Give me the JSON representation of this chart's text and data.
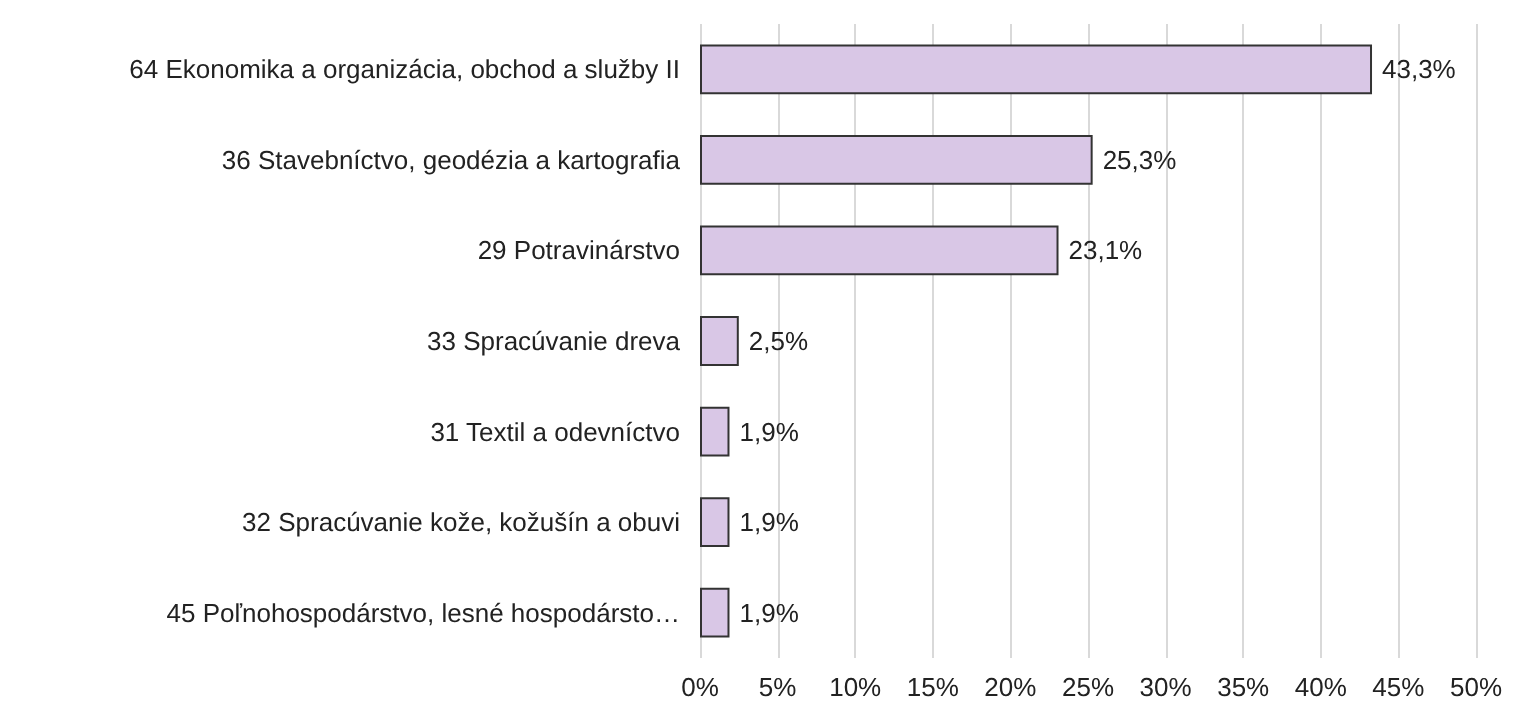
{
  "chart_data": {
    "type": "bar",
    "orientation": "horizontal",
    "categories": [
      "64 Ekonomika a organizácia, obchod a služby II",
      "36 Stavebníctvo, geodézia a kartografia",
      "29 Potravinárstvo",
      "33 Spracúvanie dreva",
      "31 Textil a odevníctvo",
      "32 Spracúvanie kože, kožušín a obuvi",
      "45 Poľnohospodárstvo, lesné hospodársto…"
    ],
    "values": [
      43.3,
      25.3,
      23.1,
      2.5,
      1.9,
      1.9,
      1.9
    ],
    "value_labels": [
      "43,3%",
      "25,3%",
      "23,1%",
      "2,5%",
      "1,9%",
      "1,9%",
      "1,9%"
    ],
    "color": "#d9c7e6",
    "xlim": [
      0,
      50
    ],
    "xticks": [
      {
        "value": 0,
        "label": "0%"
      },
      {
        "value": 5,
        "label": "5%"
      },
      {
        "value": 10,
        "label": "10%"
      },
      {
        "value": 15,
        "label": "15%"
      },
      {
        "value": 20,
        "label": "20%"
      },
      {
        "value": 25,
        "label": "25%"
      },
      {
        "value": 30,
        "label": "30%"
      },
      {
        "value": 35,
        "label": "35%"
      },
      {
        "value": 40,
        "label": "40%"
      },
      {
        "value": 45,
        "label": "45%"
      },
      {
        "value": 50,
        "label": "50%"
      }
    ],
    "grid": "x"
  }
}
